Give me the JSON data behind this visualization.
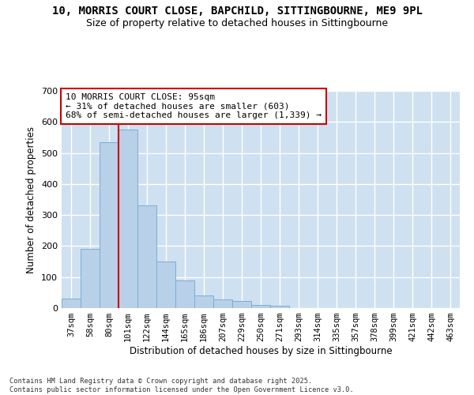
{
  "title_line1": "10, MORRIS COURT CLOSE, BAPCHILD, SITTINGBOURNE, ME9 9PL",
  "title_line2": "Size of property relative to detached houses in Sittingbourne",
  "xlabel": "Distribution of detached houses by size in Sittingbourne",
  "ylabel": "Number of detached properties",
  "categories": [
    "37sqm",
    "58sqm",
    "80sqm",
    "101sqm",
    "122sqm",
    "144sqm",
    "165sqm",
    "186sqm",
    "207sqm",
    "229sqm",
    "250sqm",
    "271sqm",
    "293sqm",
    "314sqm",
    "335sqm",
    "357sqm",
    "378sqm",
    "399sqm",
    "421sqm",
    "442sqm",
    "463sqm"
  ],
  "values": [
    30,
    190,
    535,
    575,
    330,
    150,
    90,
    40,
    28,
    22,
    10,
    8,
    0,
    0,
    0,
    0,
    0,
    0,
    0,
    0,
    0
  ],
  "bar_color": "#b8d0e8",
  "bar_edge_color": "#7aafd4",
  "vline_color": "#cc0000",
  "annotation_text": "10 MORRIS COURT CLOSE: 95sqm\n← 31% of detached houses are smaller (603)\n68% of semi-detached houses are larger (1,339) →",
  "annotation_box_color": "#ffffff",
  "annotation_box_edge": "#cc0000",
  "ylim": [
    0,
    700
  ],
  "yticks": [
    0,
    100,
    200,
    300,
    400,
    500,
    600,
    700
  ],
  "background_color": "#cfe0f0",
  "grid_color": "#ffffff",
  "fig_background": "#ffffff",
  "footer_line1": "Contains HM Land Registry data © Crown copyright and database right 2025.",
  "footer_line2": "Contains public sector information licensed under the Open Government Licence v3.0."
}
